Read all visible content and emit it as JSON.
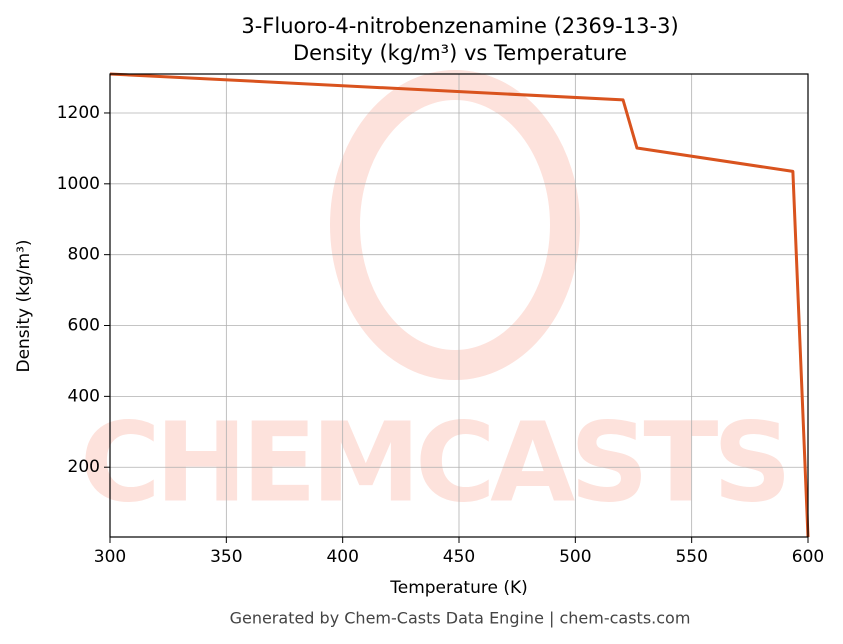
{
  "chart_data": {
    "type": "line",
    "title": "3-Fluoro-4-nitrobenzenamine (2369-13-3)",
    "subtitle": "Density (kg/m³) vs Temperature",
    "x_label": "Temperature (K)",
    "y_label": "Density (kg/m³)",
    "source": "Generated by Chem-Casts Data Engine | chem-casts.com",
    "x": [
      300,
      520.5,
      526.5,
      593.5,
      600
    ],
    "series": [
      {
        "name": "Density",
        "color": "#d9531e",
        "values": [
          1310,
          1237,
          1101,
          1035,
          3
        ]
      }
    ],
    "xlim": [
      300,
      600
    ],
    "xticks": [
      300,
      350,
      400,
      450,
      500,
      550,
      600
    ],
    "ylim": [
      3,
      1310
    ],
    "yticks": [
      200,
      400,
      600,
      800,
      1000,
      1200
    ],
    "grid": true
  }
}
